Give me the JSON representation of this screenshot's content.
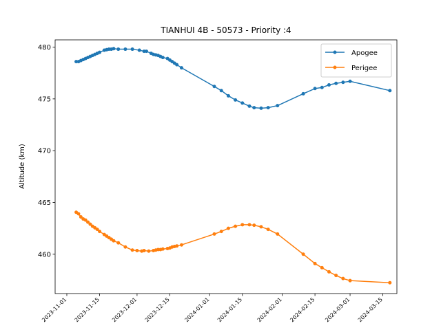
{
  "chart_data": {
    "type": "line",
    "title": "TIANHUI 4B - 50573 - Priority :4",
    "xlabel": "",
    "ylabel": "Altitude (km)",
    "x_type": "date",
    "xlim": [
      "2023-10-27",
      "2024-03-21"
    ],
    "ylim": [
      456.2,
      480.7
    ],
    "x_ticks": [
      "2023-11-01",
      "2023-11-15",
      "2023-12-01",
      "2023-12-15",
      "2024-01-01",
      "2024-01-15",
      "2024-02-01",
      "2024-02-15",
      "2024-03-01",
      "2024-03-15"
    ],
    "y_ticks": [
      460,
      465,
      470,
      475,
      480
    ],
    "legend_position": "top-right",
    "grid": false,
    "series": [
      {
        "name": "Apogee",
        "color": "#1f77b4",
        "points": [
          [
            "2023-11-05",
            478.6
          ],
          [
            "2023-11-06",
            478.6
          ],
          [
            "2023-11-07",
            478.7
          ],
          [
            "2023-11-08",
            478.8
          ],
          [
            "2023-11-09",
            478.9
          ],
          [
            "2023-11-10",
            479.0
          ],
          [
            "2023-11-11",
            479.1
          ],
          [
            "2023-11-12",
            479.2
          ],
          [
            "2023-11-13",
            479.3
          ],
          [
            "2023-11-14",
            479.4
          ],
          [
            "2023-11-15",
            479.5
          ],
          [
            "2023-11-17",
            479.7
          ],
          [
            "2023-11-18",
            479.75
          ],
          [
            "2023-11-19",
            479.8
          ],
          [
            "2023-11-20",
            479.8
          ],
          [
            "2023-11-21",
            479.85
          ],
          [
            "2023-11-23",
            479.8
          ],
          [
            "2023-11-26",
            479.8
          ],
          [
            "2023-11-29",
            479.8
          ],
          [
            "2023-12-02",
            479.7
          ],
          [
            "2023-12-04",
            479.6
          ],
          [
            "2023-12-05",
            479.6
          ],
          [
            "2023-12-07",
            479.4
          ],
          [
            "2023-12-08",
            479.3
          ],
          [
            "2023-12-09",
            479.25
          ],
          [
            "2023-12-10",
            479.2
          ],
          [
            "2023-12-11",
            479.1
          ],
          [
            "2023-12-12",
            479.0
          ],
          [
            "2023-12-14",
            478.9
          ],
          [
            "2023-12-15",
            478.75
          ],
          [
            "2023-12-16",
            478.6
          ],
          [
            "2023-12-17",
            478.45
          ],
          [
            "2023-12-18",
            478.3
          ],
          [
            "2023-12-20",
            478.0
          ],
          [
            "2024-01-03",
            476.2
          ],
          [
            "2024-01-06",
            475.8
          ],
          [
            "2024-01-09",
            475.3
          ],
          [
            "2024-01-12",
            474.9
          ],
          [
            "2024-01-15",
            474.6
          ],
          [
            "2024-01-18",
            474.3
          ],
          [
            "2024-01-20",
            474.15
          ],
          [
            "2024-01-23",
            474.1
          ],
          [
            "2024-01-26",
            474.15
          ],
          [
            "2024-01-30",
            474.35
          ],
          [
            "2024-02-10",
            475.5
          ],
          [
            "2024-02-15",
            476.0
          ],
          [
            "2024-02-18",
            476.1
          ],
          [
            "2024-02-21",
            476.35
          ],
          [
            "2024-02-24",
            476.5
          ],
          [
            "2024-02-27",
            476.6
          ],
          [
            "2024-03-01",
            476.7
          ],
          [
            "2024-03-18",
            475.8
          ]
        ]
      },
      {
        "name": "Perigee",
        "color": "#ff7f0e",
        "points": [
          [
            "2023-11-05",
            464.05
          ],
          [
            "2023-11-06",
            463.9
          ],
          [
            "2023-11-07",
            463.6
          ],
          [
            "2023-11-08",
            463.4
          ],
          [
            "2023-11-09",
            463.3
          ],
          [
            "2023-11-10",
            463.1
          ],
          [
            "2023-11-11",
            462.9
          ],
          [
            "2023-11-12",
            462.7
          ],
          [
            "2023-11-13",
            462.55
          ],
          [
            "2023-11-14",
            462.4
          ],
          [
            "2023-11-15",
            462.2
          ],
          [
            "2023-11-17",
            461.9
          ],
          [
            "2023-11-18",
            461.75
          ],
          [
            "2023-11-19",
            461.6
          ],
          [
            "2023-11-20",
            461.45
          ],
          [
            "2023-11-21",
            461.3
          ],
          [
            "2023-11-23",
            461.1
          ],
          [
            "2023-11-26",
            460.7
          ],
          [
            "2023-11-29",
            460.4
          ],
          [
            "2023-12-01",
            460.35
          ],
          [
            "2023-12-03",
            460.3
          ],
          [
            "2023-12-04",
            460.35
          ],
          [
            "2023-12-06",
            460.3
          ],
          [
            "2023-12-08",
            460.35
          ],
          [
            "2023-12-09",
            460.4
          ],
          [
            "2023-12-10",
            460.45
          ],
          [
            "2023-12-11",
            460.45
          ],
          [
            "2023-12-12",
            460.5
          ],
          [
            "2023-12-14",
            460.55
          ],
          [
            "2023-12-15",
            460.6
          ],
          [
            "2023-12-16",
            460.7
          ],
          [
            "2023-12-17",
            460.75
          ],
          [
            "2023-12-18",
            460.8
          ],
          [
            "2023-12-20",
            460.9
          ],
          [
            "2024-01-03",
            461.95
          ],
          [
            "2024-01-06",
            462.2
          ],
          [
            "2024-01-09",
            462.5
          ],
          [
            "2024-01-12",
            462.7
          ],
          [
            "2024-01-15",
            462.85
          ],
          [
            "2024-01-18",
            462.85
          ],
          [
            "2024-01-20",
            462.8
          ],
          [
            "2024-01-23",
            462.65
          ],
          [
            "2024-01-26",
            462.4
          ],
          [
            "2024-01-30",
            461.95
          ],
          [
            "2024-02-10",
            460.0
          ],
          [
            "2024-02-15",
            459.1
          ],
          [
            "2024-02-18",
            458.7
          ],
          [
            "2024-02-21",
            458.3
          ],
          [
            "2024-02-24",
            457.95
          ],
          [
            "2024-02-27",
            457.65
          ],
          [
            "2024-03-01",
            457.45
          ],
          [
            "2024-03-18",
            457.25
          ]
        ]
      }
    ]
  }
}
